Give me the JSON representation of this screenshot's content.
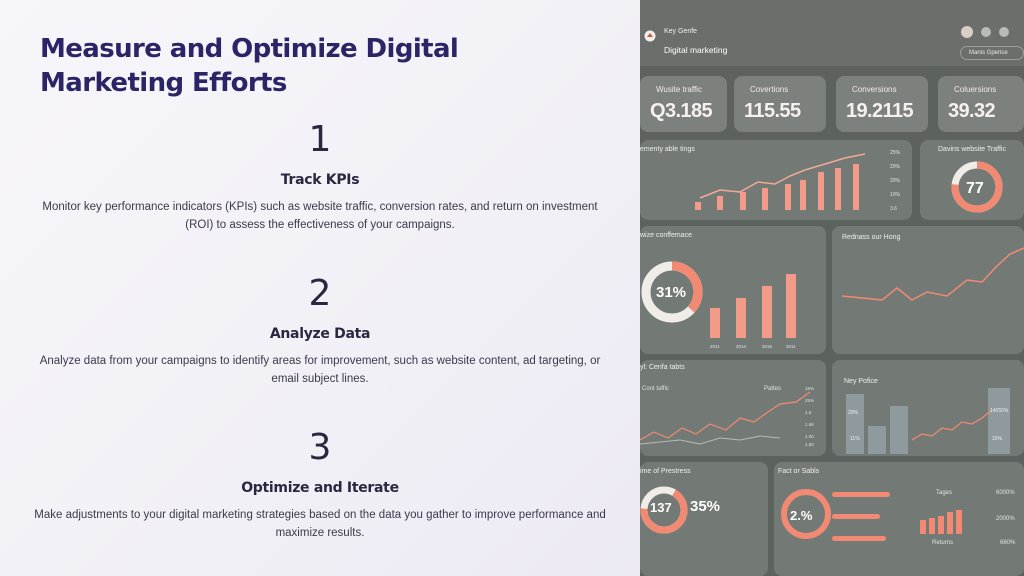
{
  "slide": {
    "title": "Measure and Optimize Digital Marketing Efforts",
    "steps": [
      {
        "number": "1",
        "heading": "Track KPIs",
        "text": "Monitor key performance indicators (KPIs) such as website traffic, conversion rates, and return on investment (ROI) to assess the effectiveness of your campaigns."
      },
      {
        "number": "2",
        "heading": "Analyze Data",
        "text": "Analyze data from your campaigns to identify areas for improvement, such as website content, ad targeting, or email subject lines."
      },
      {
        "number": "3",
        "heading": "Optimize and Iterate",
        "text": "Make adjustments to your digital marketing strategies based on the data you gather to improve performance and maximize results."
      }
    ]
  },
  "dashboard": {
    "app_label": "Key Genfe",
    "app_name": "Digital marketing",
    "menu_pill": "Manis Gperice",
    "kpis": [
      {
        "label": "Wusite traffic",
        "value": "Q3.185"
      },
      {
        "label": "Covertions",
        "value": "115.55"
      },
      {
        "label": "Conversions",
        "value": "19.2115"
      },
      {
        "label": "Coluersions",
        "value": "39.32"
      }
    ],
    "panels": {
      "traffic_chart": "ementy able tings",
      "donut_top": "Davins website Traffic",
      "donut_top_value": "77",
      "conv_panel": "wize conffemace",
      "conv_donut_value": "31%",
      "line_panel": "Rednass our Hong",
      "tabs_panel": "yl: Cenfa tabts",
      "cont_traffic": "Cont taffic",
      "pattern": "Pattes",
      "key_police": "Ney Pofice",
      "prestress": "ime of Prestress",
      "prestress_value": "137",
      "prestress_pct": "35%",
      "fact_table": "Fact or Sabls",
      "fact_value": "2.%",
      "tages": "Tages",
      "returns": "Returns",
      "pct_a": "6000%",
      "pct_b": "2000%",
      "pct_c": "660%"
    },
    "colors": {
      "accent": "#f28a73",
      "panel": "#737a75",
      "title": "#2b2466"
    }
  }
}
